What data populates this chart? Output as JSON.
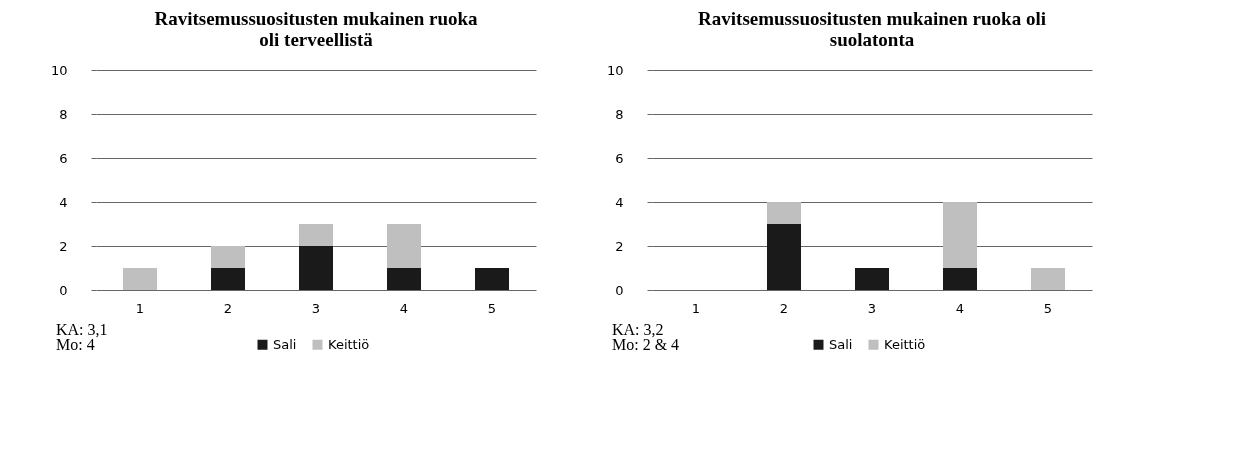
{
  "chart_data": [
    {
      "type": "bar",
      "title": "Ravitsemussuositusten mukainen ruoka\noli terveellistä",
      "categories": [
        "1",
        "2",
        "3",
        "4",
        "5"
      ],
      "stacked": true,
      "series": [
        {
          "name": "Sali",
          "color": "#1a1a1a",
          "values": [
            0,
            1,
            2,
            1,
            1
          ]
        },
        {
          "name": "Keittiö",
          "color": "#bfbfbf",
          "values": [
            1,
            1,
            1,
            2,
            0
          ]
        }
      ],
      "ylim": [
        0,
        10
      ],
      "yticks": [
        0,
        2,
        4,
        6,
        8,
        10
      ],
      "grid": "y",
      "legend": "bottom",
      "annotations": [
        "KA: 3,1",
        "Mo: 4"
      ]
    },
    {
      "type": "bar",
      "title": "Ravitsemussuositusten mukainen ruoka oli\nsuolatonta",
      "categories": [
        "1",
        "2",
        "3",
        "4",
        "5"
      ],
      "stacked": true,
      "series": [
        {
          "name": "Sali",
          "color": "#1a1a1a",
          "values": [
            0,
            3,
            1,
            1,
            0
          ]
        },
        {
          "name": "Keittiö",
          "color": "#bfbfbf",
          "values": [
            0,
            1,
            0,
            3,
            1
          ]
        }
      ],
      "ylim": [
        0,
        10
      ],
      "yticks": [
        0,
        2,
        4,
        6,
        8,
        10
      ],
      "grid": "y",
      "legend": "bottom",
      "annotations": [
        "KA: 3,2",
        "Mo: 2 & 4"
      ]
    }
  ]
}
